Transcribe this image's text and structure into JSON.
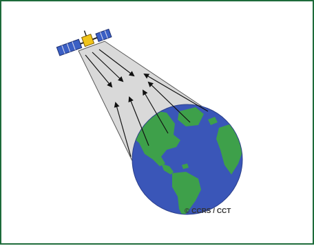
{
  "credit": "© CCRS / CCT",
  "colors": {
    "border": "#1d6b3a",
    "beam": "#d9d9d9",
    "ocean": "#3a56b8",
    "land": "#3ea04a",
    "panel": "#3b5fc4",
    "satellite_body": "#f0c419"
  },
  "icons": {
    "satellite": "satellite-icon",
    "earth": "earth-globe-icon"
  }
}
